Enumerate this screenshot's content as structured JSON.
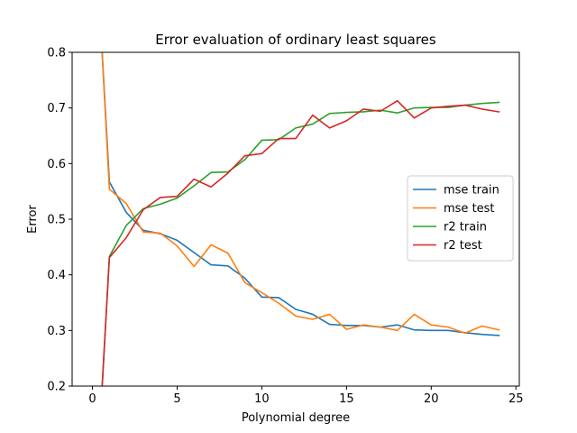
{
  "chart_data": {
    "type": "line",
    "title": "Error evaluation of ordinary least squares",
    "xlabel": "Polynomial degree",
    "ylabel": "Error",
    "xlim": [
      -1.2,
      25.2
    ],
    "ylim": [
      0.2,
      0.8
    ],
    "xticks": [
      0,
      5,
      10,
      15,
      20,
      25
    ],
    "yticks": [
      0.2,
      0.3,
      0.4,
      0.5,
      0.6,
      0.7,
      0.8
    ],
    "legend_position": "center-right",
    "grid": false,
    "x": [
      0.5,
      1,
      2,
      3,
      4,
      5,
      6,
      7,
      8,
      9,
      10,
      11,
      12,
      13,
      14,
      15,
      16,
      17,
      18,
      19,
      20,
      21,
      22,
      23,
      24
    ],
    "series": [
      {
        "name": "mse train",
        "color": "#1f77b4",
        "values": [
          0.84,
          0.567,
          0.512,
          0.48,
          0.474,
          0.462,
          0.44,
          0.418,
          0.416,
          0.394,
          0.36,
          0.359,
          0.338,
          0.329,
          0.311,
          0.309,
          0.309,
          0.306,
          0.31,
          0.301,
          0.3,
          0.3,
          0.296,
          0.293,
          0.291
        ]
      },
      {
        "name": "mse test",
        "color": "#ff7f0e",
        "values": [
          0.84,
          0.554,
          0.528,
          0.477,
          0.475,
          0.452,
          0.415,
          0.454,
          0.439,
          0.386,
          0.368,
          0.349,
          0.326,
          0.32,
          0.329,
          0.302,
          0.31,
          0.306,
          0.3,
          0.329,
          0.31,
          0.306,
          0.295,
          0.308,
          0.301
        ]
      },
      {
        "name": "r2 train",
        "color": "#2ca02c",
        "values": [
          0.16,
          0.433,
          0.489,
          0.519,
          0.527,
          0.538,
          0.56,
          0.584,
          0.585,
          0.607,
          0.642,
          0.643,
          0.664,
          0.671,
          0.69,
          0.692,
          0.693,
          0.696,
          0.691,
          0.7,
          0.701,
          0.701,
          0.705,
          0.708,
          0.71
        ]
      },
      {
        "name": "r2 test",
        "color": "#d62728",
        "values": [
          0.16,
          0.431,
          0.467,
          0.517,
          0.539,
          0.541,
          0.572,
          0.558,
          0.583,
          0.614,
          0.618,
          0.645,
          0.645,
          0.687,
          0.664,
          0.677,
          0.698,
          0.694,
          0.713,
          0.682,
          0.7,
          0.703,
          0.705,
          0.698,
          0.693
        ]
      }
    ]
  }
}
